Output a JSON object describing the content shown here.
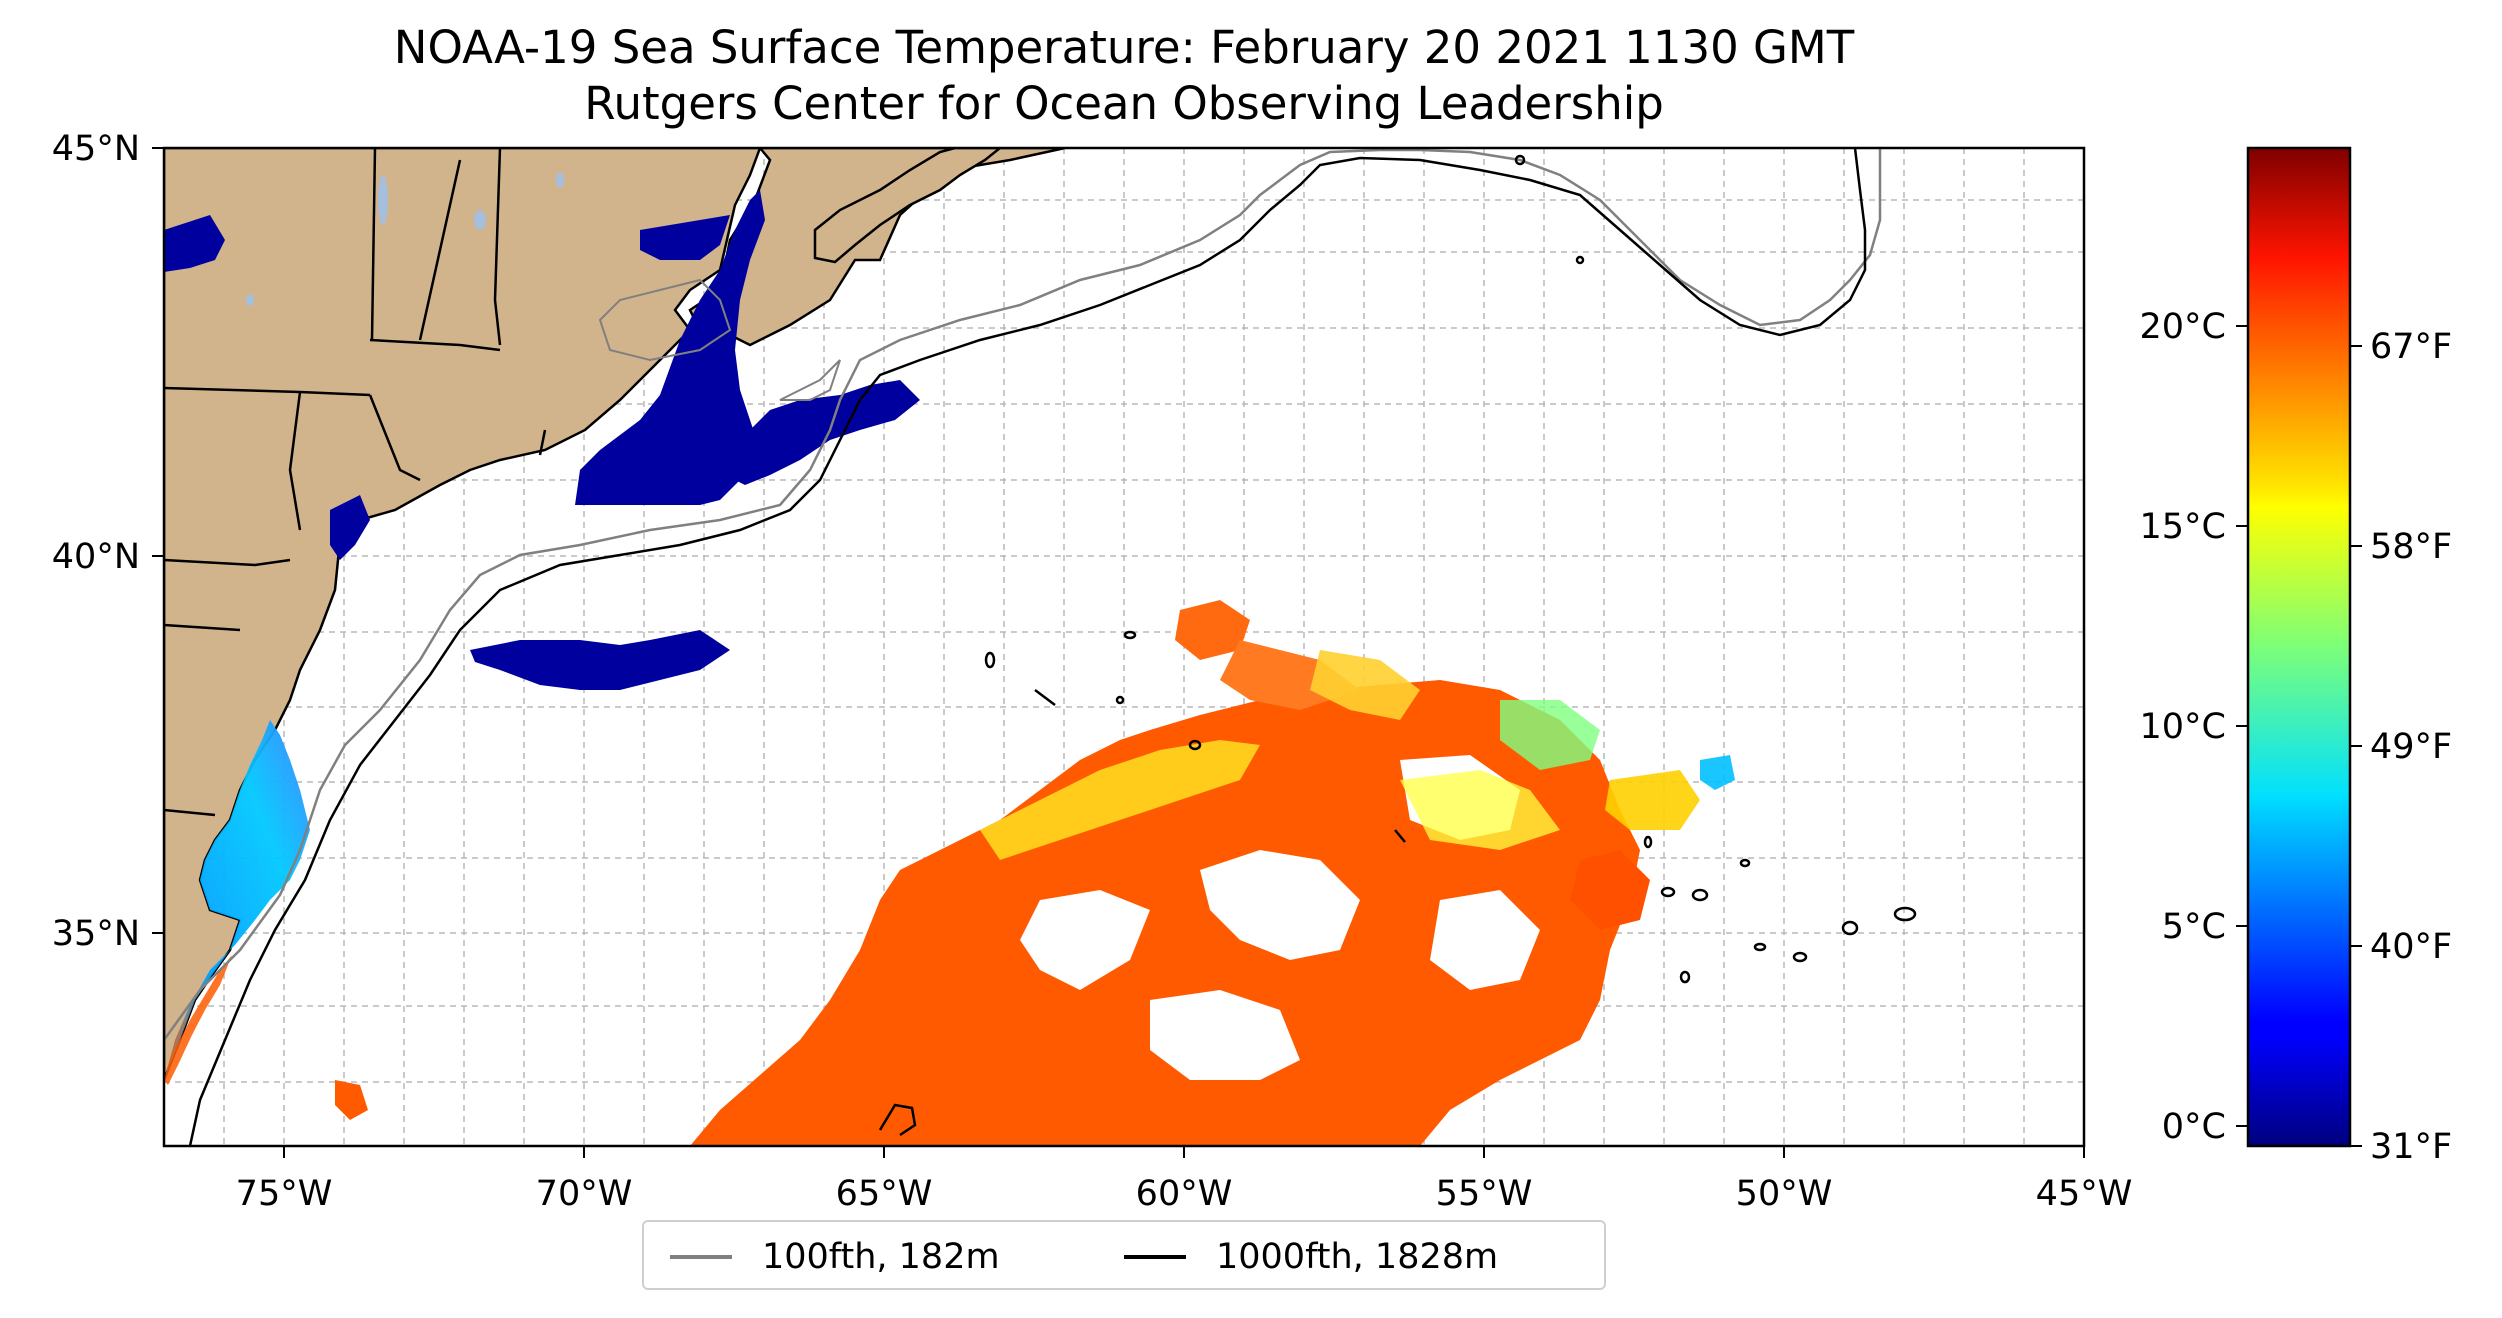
{
  "title": {
    "line1": "NOAA-19 Sea Surface Temperature: February 20 2021 1130 GMT",
    "line2": "Rutgers Center for Ocean Observing Leadership"
  },
  "map": {
    "lon_range": [
      -77,
      -45
    ],
    "lat_range": [
      32.5,
      45
    ],
    "lon_ticks": [
      "75°W",
      "70°W",
      "65°W",
      "60°W",
      "55°W",
      "50°W",
      "45°W"
    ],
    "lat_ticks": [
      "35°N",
      "40°N",
      "45°N"
    ],
    "grid": true,
    "land_color": "#d2b48c",
    "missing_data_color": "#ffffff"
  },
  "legend": {
    "items": [
      {
        "label": "100fth, 182m",
        "color": "#808080"
      },
      {
        "label": "1000fth, 1828m",
        "color": "#000000"
      }
    ],
    "placement": "bottom-center"
  },
  "colorbar": {
    "colormap": "jet",
    "celsius_ticks": [
      "0°C",
      "5°C",
      "10°C",
      "15°C",
      "20°C"
    ],
    "fahrenheit_ticks": [
      "31°F",
      "40°F",
      "49°F",
      "58°F",
      "67°F"
    ],
    "range_celsius": [
      -0.5,
      24.5
    ]
  }
}
